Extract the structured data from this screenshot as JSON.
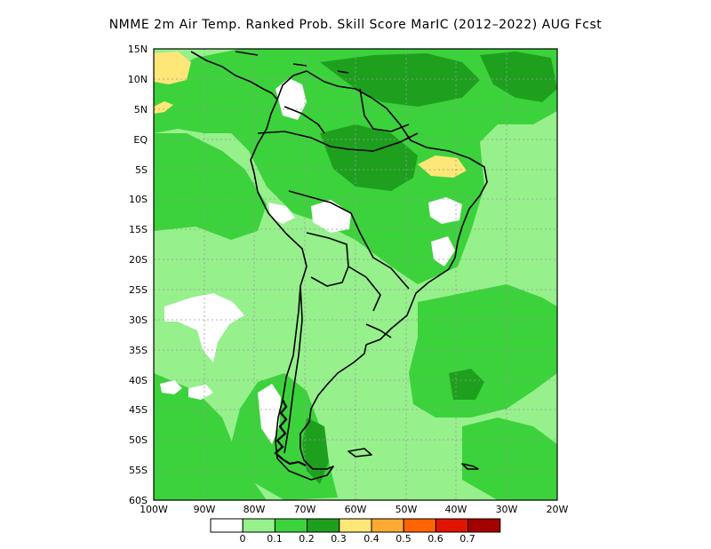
{
  "title": "NMME  2m Air Temp. Ranked Prob. Skill Score MarIC (2012–2022) AUG Fcst",
  "lat_labels": [
    "15N",
    "10N",
    "5N",
    "EQ",
    "5S",
    "10S",
    "15S",
    "20S",
    "25S",
    "30S",
    "35S",
    "40S",
    "45S",
    "50S",
    "55S",
    "60S"
  ],
  "lon_labels": [
    "100W",
    "90W",
    "80W",
    "70W",
    "60W",
    "50W",
    "40W",
    "30W",
    "20W"
  ],
  "colorbar": {
    "colors": [
      "#ffffff",
      "#96f08c",
      "#3cd23c",
      "#1ea01e",
      "#ffe678",
      "#ffaa32",
      "#ff6400",
      "#e11400",
      "#a50000"
    ],
    "labels": [
      "0",
      "0.1",
      "0.2",
      "0.3",
      "0.4",
      "0.5",
      "0.6",
      "0.7"
    ]
  },
  "map_colors": {
    "light_green": "#96f08c",
    "green": "#3cd23c",
    "dark_green": "#1ea01e",
    "yellow": "#ffe678",
    "white": "#ffffff",
    "coast": "#000000"
  }
}
